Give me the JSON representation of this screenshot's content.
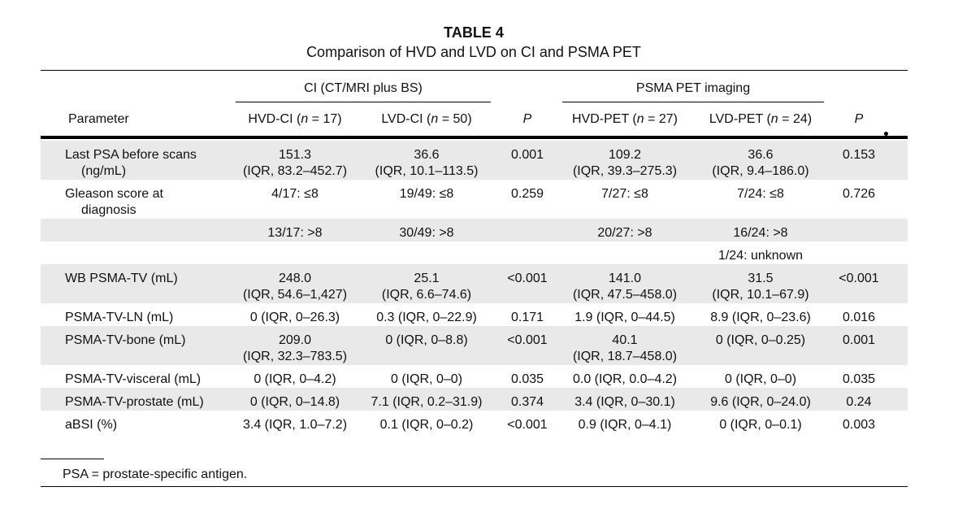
{
  "title": "TABLE 4",
  "subtitle": "Comparison of HVD and LVD on CI and PSMA PET",
  "groups": {
    "ci": "CI (CT/MRI plus BS)",
    "pet": "PSMA PET imaging"
  },
  "headers": {
    "parameter": "Parameter",
    "hvd_ci": "HVD-CI (n = 17)",
    "lvd_ci": "LVD-CI (n = 50)",
    "p1": "P",
    "hvd_pet": "HVD-PET (n = 27)",
    "lvd_pet": "LVD-PET (n = 24)",
    "p2": "P"
  },
  "rows": [
    {
      "param": [
        "Last PSA before scans",
        "(ng/mL)"
      ],
      "hvd_ci": [
        "151.3",
        "(IQR, 83.2–452.7)"
      ],
      "lvd_ci": [
        "36.6",
        "(IQR, 10.1–113.5)"
      ],
      "p1": "0.001",
      "hvd_pet": [
        "109.2",
        "(IQR, 39.3–275.3)"
      ],
      "lvd_pet": [
        "36.6",
        "(IQR, 9.4–186.0)"
      ],
      "p2": "0.153"
    },
    {
      "param": [
        "Gleason score at",
        "diagnosis"
      ],
      "hvd_ci": [
        "4/17: ≤8"
      ],
      "lvd_ci": [
        "19/49: ≤8"
      ],
      "p1": "0.259",
      "hvd_pet": [
        "7/27: ≤8"
      ],
      "lvd_pet": [
        "7/24: ≤8"
      ],
      "p2": "0.726"
    },
    {
      "param": [
        ""
      ],
      "hvd_ci": [
        "13/17: >8"
      ],
      "lvd_ci": [
        "30/49: >8"
      ],
      "p1": "",
      "hvd_pet": [
        "20/27: >8"
      ],
      "lvd_pet": [
        "16/24: >8"
      ],
      "p2": ""
    },
    {
      "param": [
        ""
      ],
      "hvd_ci": [
        ""
      ],
      "lvd_ci": [
        ""
      ],
      "p1": "",
      "hvd_pet": [
        ""
      ],
      "lvd_pet": [
        "1/24: unknown"
      ],
      "p2": ""
    },
    {
      "param": [
        "WB PSMA-TV (mL)"
      ],
      "hvd_ci": [
        "248.0",
        "(IQR, 54.6–1,427)"
      ],
      "lvd_ci": [
        "25.1",
        "(IQR, 6.6–74.6)"
      ],
      "p1": "<0.001",
      "hvd_pet": [
        "141.0",
        "(IQR, 47.5–458.0)"
      ],
      "lvd_pet": [
        "31.5",
        "(IQR, 10.1–67.9)"
      ],
      "p2": "<0.001"
    },
    {
      "param": [
        "PSMA-TV-LN (mL)"
      ],
      "hvd_ci": [
        "0 (IQR, 0–26.3)"
      ],
      "lvd_ci": [
        "0.3 (IQR, 0–22.9)"
      ],
      "p1": "0.171",
      "hvd_pet": [
        "1.9 (IQR, 0–44.5)"
      ],
      "lvd_pet": [
        "8.9 (IQR, 0–23.6)"
      ],
      "p2": "0.016"
    },
    {
      "param": [
        "PSMA-TV-bone (mL)"
      ],
      "hvd_ci": [
        "209.0",
        "(IQR, 32.3–783.5)"
      ],
      "lvd_ci": [
        "0 (IQR, 0–8.8)"
      ],
      "p1": "<0.001",
      "hvd_pet": [
        "40.1",
        "(IQR, 18.7–458.0)"
      ],
      "lvd_pet": [
        "0 (IQR, 0–0.25)"
      ],
      "p2": "0.001"
    },
    {
      "param": [
        "PSMA-TV-visceral (mL)"
      ],
      "hvd_ci": [
        "0 (IQR, 0–4.2)"
      ],
      "lvd_ci": [
        "0 (IQR, 0–0)"
      ],
      "p1": "0.035",
      "hvd_pet": [
        "0.0 (IQR, 0.0–4.2)"
      ],
      "lvd_pet": [
        "0 (IQR, 0–0)"
      ],
      "p2": "0.035"
    },
    {
      "param": [
        "PSMA-TV-prostate (mL)"
      ],
      "hvd_ci": [
        "0 (IQR, 0–14.8)"
      ],
      "lvd_ci": [
        "7.1 (IQR, 0.2–31.9)"
      ],
      "p1": "0.374",
      "hvd_pet": [
        "3.4 (IQR, 0–30.1)"
      ],
      "lvd_pet": [
        "9.6 (IQR, 0–24.0)"
      ],
      "p2": "0.24"
    },
    {
      "param": [
        "aBSI (%)"
      ],
      "hvd_ci": [
        "3.4 (IQR, 1.0–7.2)"
      ],
      "lvd_ci": [
        "0.1 (IQR, 0–0.2)"
      ],
      "p1": "<0.001",
      "hvd_pet": [
        "0.9 (IQR, 0–4.1)"
      ],
      "lvd_pet": [
        "0 (IQR, 0–0.1)"
      ],
      "p2": "0.003"
    }
  ],
  "footnote": "PSA = prostate-specific antigen."
}
